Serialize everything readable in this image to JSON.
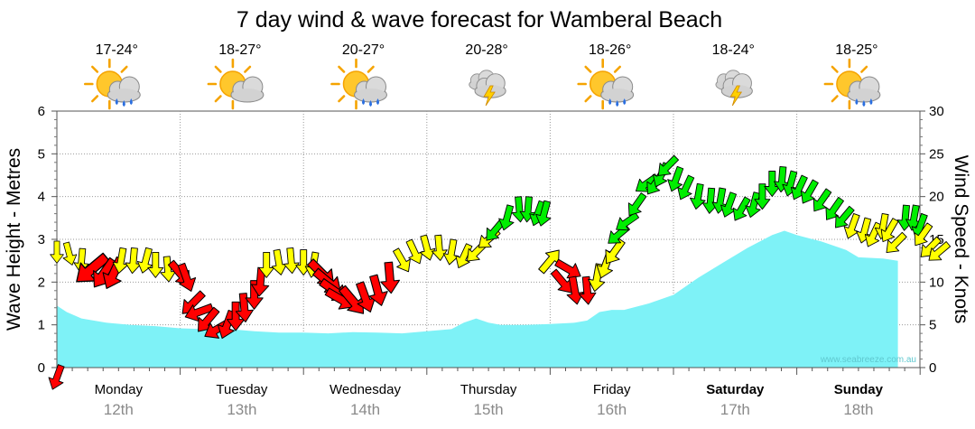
{
  "chart_data": {
    "type": "area",
    "title": "7 day wind & wave forecast for Wamberal Beach",
    "ylabel_left": "Wave Height - Metres",
    "ylabel_right": "Wind Speed - Knots",
    "ylim_left": [
      0,
      6
    ],
    "ylim_right": [
      0,
      30
    ],
    "yticks_left": [
      0,
      1,
      2,
      3,
      4,
      5,
      6
    ],
    "yticks_right": [
      0,
      5,
      10,
      15,
      20,
      25,
      30
    ],
    "watermark": "www.seabreeze.com.au",
    "colors": {
      "wave": "#7ef2f7",
      "wind_low": "#ff0000",
      "wind_mid": "#ffff00",
      "wind_high": "#00ee00"
    },
    "days": [
      {
        "day": "Monday",
        "date": "12th",
        "bold": false,
        "temp": "17-24°",
        "weather": "partly-cloudy-showers"
      },
      {
        "day": "Tuesday",
        "date": "13th",
        "bold": false,
        "temp": "18-27°",
        "weather": "partly-cloudy"
      },
      {
        "day": "Wednesday",
        "date": "14th",
        "bold": false,
        "temp": "20-27°",
        "weather": "partly-cloudy-showers"
      },
      {
        "day": "Thursday",
        "date": "15th",
        "bold": false,
        "temp": "20-28°",
        "weather": "storm"
      },
      {
        "day": "Friday",
        "date": "16th",
        "bold": false,
        "temp": "18-26°",
        "weather": "partly-cloudy-showers"
      },
      {
        "day": "Saturday",
        "date": "17th",
        "bold": true,
        "temp": "18-24°",
        "weather": "storm"
      },
      {
        "day": "Sunday",
        "date": "18th",
        "bold": true,
        "temp": "18-25°",
        "weather": "partly-cloudy-showers"
      }
    ],
    "wave_series": {
      "name": "Wave Height",
      "points": [
        [
          0,
          1.45
        ],
        [
          0.08,
          1.3
        ],
        [
          0.2,
          1.15
        ],
        [
          0.4,
          1.05
        ],
        [
          0.6,
          1.0
        ],
        [
          0.8,
          0.97
        ],
        [
          1.0,
          0.92
        ],
        [
          1.2,
          0.9
        ],
        [
          1.4,
          0.9
        ],
        [
          1.6,
          0.85
        ],
        [
          1.8,
          0.82
        ],
        [
          2.0,
          0.82
        ],
        [
          2.2,
          0.8
        ],
        [
          2.4,
          0.83
        ],
        [
          2.6,
          0.82
        ],
        [
          2.8,
          0.8
        ],
        [
          3.0,
          0.85
        ],
        [
          3.2,
          0.9
        ],
        [
          3.3,
          1.05
        ],
        [
          3.4,
          1.15
        ],
        [
          3.5,
          1.05
        ],
        [
          3.6,
          1.0
        ],
        [
          3.8,
          1.0
        ],
        [
          4.0,
          1.02
        ],
        [
          4.2,
          1.05
        ],
        [
          4.3,
          1.1
        ],
        [
          4.4,
          1.3
        ],
        [
          4.5,
          1.35
        ],
        [
          4.6,
          1.35
        ],
        [
          4.8,
          1.5
        ],
        [
          5.0,
          1.7
        ],
        [
          5.2,
          2.1
        ],
        [
          5.4,
          2.45
        ],
        [
          5.6,
          2.8
        ],
        [
          5.8,
          3.1
        ],
        [
          5.9,
          3.2
        ],
        [
          6.0,
          3.1
        ],
        [
          6.2,
          2.95
        ],
        [
          6.4,
          2.75
        ],
        [
          6.5,
          2.58
        ],
        [
          6.7,
          2.55
        ],
        [
          6.82,
          2.5
        ]
      ]
    },
    "wind_series": {
      "name": "Wind",
      "arrows": [
        [
          0.0,
          0.0,
          2.3,
          200,
          "red"
        ],
        [
          0.0,
          13.5,
          2.0,
          180,
          "yellow"
        ],
        [
          0.1,
          13.3,
          2.1,
          165,
          "yellow"
        ],
        [
          0.2,
          12.5,
          2.2,
          185,
          "yellow"
        ],
        [
          0.28,
          11.5,
          3.5,
          230,
          "red"
        ],
        [
          0.38,
          11.0,
          3.0,
          215,
          "red"
        ],
        [
          0.46,
          11.0,
          3.0,
          205,
          "red"
        ],
        [
          0.52,
          12.5,
          2.3,
          190,
          "yellow"
        ],
        [
          0.62,
          12.5,
          2.3,
          185,
          "yellow"
        ],
        [
          0.72,
          12.5,
          2.3,
          195,
          "yellow"
        ],
        [
          0.8,
          12.0,
          2.3,
          180,
          "yellow"
        ],
        [
          0.9,
          11.5,
          2.3,
          175,
          "yellow"
        ],
        [
          1.0,
          11.0,
          2.6,
          140,
          "red"
        ],
        [
          1.05,
          10.5,
          2.6,
          160,
          "red"
        ],
        [
          1.1,
          7.5,
          2.6,
          225,
          "red"
        ],
        [
          1.15,
          6.5,
          2.6,
          250,
          "red"
        ],
        [
          1.22,
          5.5,
          2.6,
          220,
          "red"
        ],
        [
          1.3,
          4.5,
          2.6,
          240,
          "red"
        ],
        [
          1.38,
          5.0,
          2.6,
          200,
          "red"
        ],
        [
          1.45,
          6.0,
          2.6,
          180,
          "red"
        ],
        [
          1.52,
          7.0,
          2.6,
          175,
          "red"
        ],
        [
          1.6,
          8.5,
          2.6,
          180,
          "red"
        ],
        [
          1.65,
          10.0,
          2.6,
          185,
          "red"
        ],
        [
          1.7,
          12.0,
          2.3,
          180,
          "yellow"
        ],
        [
          1.8,
          12.3,
          2.3,
          170,
          "yellow"
        ],
        [
          1.9,
          12.5,
          2.3,
          175,
          "yellow"
        ],
        [
          2.0,
          12.3,
          2.3,
          180,
          "yellow"
        ],
        [
          2.08,
          12.0,
          2.3,
          190,
          "yellow"
        ],
        [
          2.15,
          11.0,
          3.0,
          135,
          "red"
        ],
        [
          2.2,
          10.0,
          3.0,
          130,
          "red"
        ],
        [
          2.25,
          9.0,
          2.8,
          125,
          "red"
        ],
        [
          2.3,
          8.0,
          2.8,
          120,
          "red"
        ],
        [
          2.4,
          7.8,
          3.0,
          140,
          "red"
        ],
        [
          2.5,
          8.2,
          2.8,
          160,
          "red"
        ],
        [
          2.6,
          9.0,
          2.8,
          165,
          "red"
        ],
        [
          2.7,
          10.5,
          2.8,
          175,
          "red"
        ],
        [
          2.8,
          12.5,
          2.3,
          150,
          "yellow"
        ],
        [
          2.9,
          13.5,
          2.3,
          155,
          "yellow"
        ],
        [
          3.0,
          14.0,
          2.3,
          165,
          "yellow"
        ],
        [
          3.1,
          14.0,
          2.3,
          175,
          "yellow"
        ],
        [
          3.2,
          13.5,
          2.3,
          190,
          "yellow"
        ],
        [
          3.3,
          13.0,
          2.3,
          205,
          "yellow"
        ],
        [
          3.4,
          13.5,
          2.3,
          225,
          "yellow"
        ],
        [
          3.5,
          15.0,
          2.3,
          230,
          "yellow"
        ],
        [
          3.55,
          16.0,
          2.3,
          220,
          "green"
        ],
        [
          3.65,
          17.5,
          2.3,
          195,
          "green"
        ],
        [
          3.75,
          18.5,
          2.3,
          175,
          "green"
        ],
        [
          3.82,
          18.5,
          2.3,
          185,
          "green"
        ],
        [
          3.9,
          18.0,
          2.3,
          200,
          "green"
        ],
        [
          3.95,
          18.0,
          2.3,
          195,
          "green"
        ],
        [
          4.0,
          12.5,
          2.5,
          40,
          "yellow"
        ],
        [
          4.1,
          10.0,
          2.5,
          140,
          "red"
        ],
        [
          4.15,
          11.5,
          2.5,
          120,
          "red"
        ],
        [
          4.2,
          9.0,
          2.5,
          170,
          "red"
        ],
        [
          4.3,
          9.0,
          2.5,
          175,
          "red"
        ],
        [
          4.38,
          10.5,
          2.5,
          190,
          "yellow"
        ],
        [
          4.45,
          12.0,
          2.5,
          200,
          "yellow"
        ],
        [
          4.52,
          13.5,
          2.5,
          215,
          "yellow"
        ],
        [
          4.55,
          15.5,
          2.3,
          230,
          "green"
        ],
        [
          4.62,
          17.0,
          2.3,
          235,
          "green"
        ],
        [
          4.7,
          19.0,
          2.3,
          215,
          "green"
        ],
        [
          4.78,
          21.5,
          2.3,
          235,
          "green"
        ],
        [
          4.85,
          21.5,
          2.3,
          215,
          "green"
        ],
        [
          4.9,
          22.5,
          2.3,
          205,
          "green"
        ],
        [
          4.95,
          23.5,
          2.3,
          225,
          "green"
        ],
        [
          5.02,
          22.0,
          2.3,
          200,
          "green"
        ],
        [
          5.1,
          21.0,
          2.3,
          205,
          "green"
        ],
        [
          5.2,
          20.0,
          2.3,
          190,
          "green"
        ],
        [
          5.3,
          19.5,
          2.3,
          185,
          "green"
        ],
        [
          5.38,
          19.5,
          2.3,
          190,
          "green"
        ],
        [
          5.45,
          19.0,
          2.3,
          200,
          "green"
        ],
        [
          5.55,
          18.5,
          2.3,
          210,
          "green"
        ],
        [
          5.65,
          19.0,
          2.3,
          195,
          "green"
        ],
        [
          5.72,
          20.0,
          2.3,
          180,
          "green"
        ],
        [
          5.8,
          21.5,
          2.3,
          180,
          "green"
        ],
        [
          5.88,
          22.0,
          2.3,
          185,
          "green"
        ],
        [
          5.95,
          21.5,
          2.3,
          195,
          "green"
        ],
        [
          6.02,
          21.0,
          2.3,
          205,
          "green"
        ],
        [
          6.1,
          20.5,
          2.3,
          210,
          "green"
        ],
        [
          6.2,
          19.5,
          2.3,
          215,
          "green"
        ],
        [
          6.3,
          18.5,
          2.3,
          215,
          "green"
        ],
        [
          6.38,
          17.5,
          2.3,
          220,
          "green"
        ],
        [
          6.45,
          16.5,
          2.3,
          200,
          "yellow"
        ],
        [
          6.55,
          16.0,
          2.3,
          195,
          "yellow"
        ],
        [
          6.62,
          15.5,
          2.3,
          205,
          "yellow"
        ],
        [
          6.7,
          16.5,
          2.3,
          190,
          "yellow"
        ],
        [
          6.75,
          16.0,
          2.3,
          210,
          "yellow"
        ],
        [
          6.8,
          14.5,
          2.3,
          225,
          "yellow"
        ],
        [
          6.88,
          17.5,
          2.3,
          185,
          "green"
        ],
        [
          6.95,
          17.5,
          2.3,
          190,
          "green"
        ],
        [
          7.0,
          16.5,
          2.3,
          200,
          "green"
        ],
        [
          7.02,
          15.5,
          2.3,
          215,
          "yellow"
        ],
        [
          7.08,
          14.0,
          2.3,
          225,
          "yellow"
        ],
        [
          7.15,
          13.5,
          2.3,
          230,
          "yellow"
        ]
      ]
    }
  }
}
